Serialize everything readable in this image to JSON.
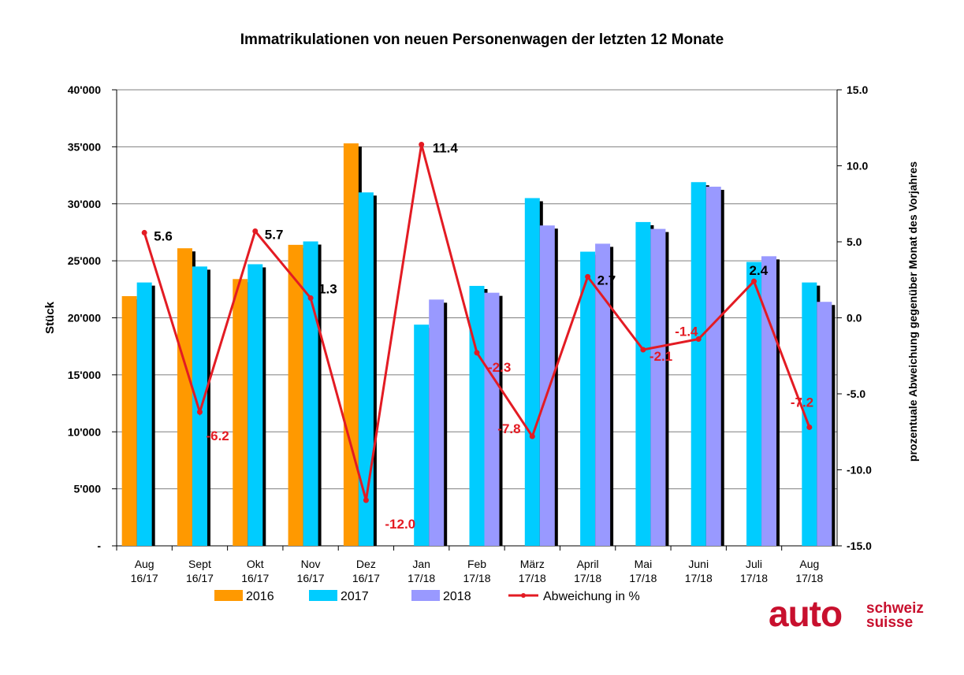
{
  "chart_data": {
    "type": "bar",
    "title": "Immatrikulationen von neuen Personenwagen der letzten 12 Monate",
    "ylabel": "Stück",
    "y2label": "prozentuale Abweichung gegenüber Monat des Vorjahres",
    "ylim": [
      0,
      40000
    ],
    "y2lim": [
      -15,
      15
    ],
    "yticks": [
      "-",
      "5'000",
      "10'000",
      "15'000",
      "20'000",
      "25'000",
      "30'000",
      "35'000",
      "40'000"
    ],
    "y2ticks": [
      "-15.0",
      "-10.0",
      "-5.0",
      "0.0",
      "5.0",
      "10.0",
      "15.0"
    ],
    "grid": true,
    "legend_position": "bottom",
    "categories": [
      [
        "Aug",
        "16/17"
      ],
      [
        "Sept",
        "16/17"
      ],
      [
        "Okt",
        "16/17"
      ],
      [
        "Nov",
        "16/17"
      ],
      [
        "Dez",
        "16/17"
      ],
      [
        "Jan",
        "17/18"
      ],
      [
        "Feb",
        "17/18"
      ],
      [
        "März",
        "17/18"
      ],
      [
        "April",
        "17/18"
      ],
      [
        "Mai",
        "17/18"
      ],
      [
        "Juni",
        "17/18"
      ],
      [
        "Juli",
        "17/18"
      ],
      [
        "Aug",
        "17/18"
      ]
    ],
    "series": [
      {
        "name": "2016",
        "color": "#FF9900",
        "values": [
          21900,
          26100,
          23400,
          26400,
          35300,
          null,
          null,
          null,
          null,
          null,
          null,
          null,
          null
        ]
      },
      {
        "name": "2017",
        "color": "#00CCFF",
        "values": [
          23100,
          24500,
          24700,
          26700,
          31000,
          19400,
          22800,
          30500,
          25800,
          28400,
          31900,
          24900,
          23100
        ]
      },
      {
        "name": "2018",
        "color": "#9999FF",
        "values": [
          null,
          null,
          null,
          null,
          null,
          21600,
          22200,
          28100,
          26500,
          27800,
          31500,
          25400,
          21400
        ]
      }
    ],
    "line": {
      "name": "Abweichung in %",
      "color": "#E31B23",
      "axis": "right",
      "values": [
        5.6,
        -6.2,
        5.7,
        1.3,
        -12.0,
        11.4,
        -2.3,
        -7.8,
        2.7,
        -2.1,
        -1.4,
        2.4,
        -7.2
      ],
      "labels": [
        "5.6",
        "-6.2",
        "5.7",
        "1.3",
        "-12.0",
        "11.4",
        "-2.3",
        "-7.8",
        "2.7",
        "-2.1",
        "-1.4",
        "2.4",
        "-7.2"
      ],
      "label_colors": [
        "#000000",
        "#E31B23",
        "#000000",
        "#000000",
        "#E31B23",
        "#000000",
        "#E31B23",
        "#E31B23",
        "#000000",
        "#E31B23",
        "#E31B23",
        "#000000",
        "#E31B23"
      ]
    }
  },
  "logo": {
    "main": "auto",
    "line1": "schweiz",
    "line2": "suisse"
  }
}
